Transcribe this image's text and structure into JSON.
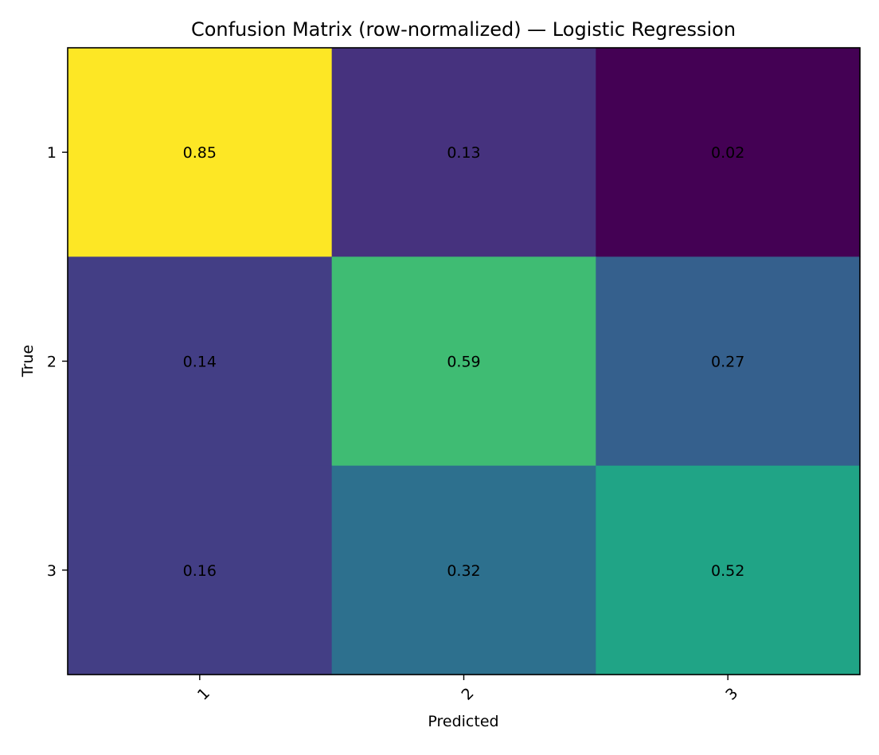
{
  "chart_data": {
    "type": "heatmap",
    "title": "Confusion Matrix (row-normalized) — Logistic Regression",
    "xlabel": "Predicted",
    "ylabel": "True",
    "x_categories": [
      "1",
      "2",
      "3"
    ],
    "y_categories": [
      "1",
      "2",
      "3"
    ],
    "values": [
      [
        0.85,
        0.13,
        0.02
      ],
      [
        0.14,
        0.59,
        0.27
      ],
      [
        0.16,
        0.32,
        0.52
      ]
    ],
    "value_labels": [
      [
        "0.85",
        "0.13",
        "0.02"
      ],
      [
        "0.14",
        "0.59",
        "0.27"
      ],
      [
        "0.16",
        "0.32",
        "0.52"
      ]
    ],
    "colormap": "viridis",
    "cell_colors": [
      [
        "#fde725",
        "#46327e",
        "#440154"
      ],
      [
        "#433e85",
        "#3fbc73",
        "#35608d"
      ],
      [
        "#433e85",
        "#2d708e",
        "#20a486"
      ]
    ],
    "grid": false,
    "colorbar": false,
    "legend": "none"
  }
}
